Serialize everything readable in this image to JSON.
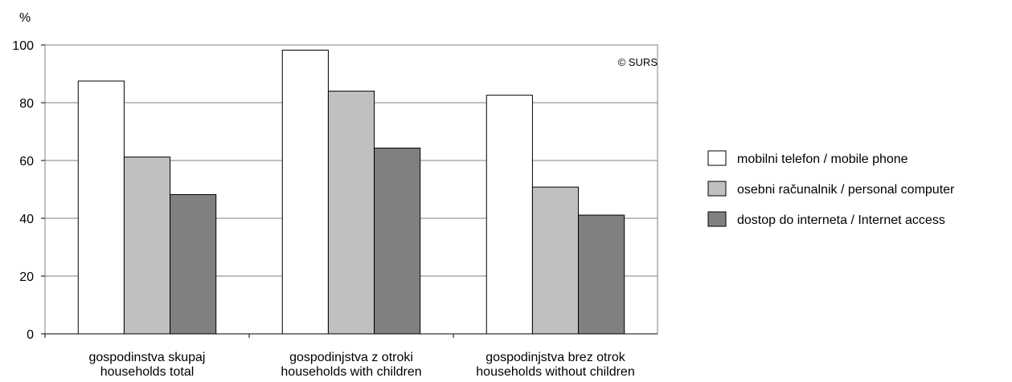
{
  "chart_data": {
    "type": "bar",
    "ylabel": "%",
    "ylim": [
      0,
      100
    ],
    "yticks": [
      0,
      20,
      40,
      60,
      80,
      100
    ],
    "grid": true,
    "legend_position": "right",
    "annotation": "© SURS",
    "categories": [
      [
        "gospodinstva skupaj",
        "households total"
      ],
      [
        "gospodinjstva z otroki",
        "households with children"
      ],
      [
        "gospodinjstva brez otrok",
        "households without children"
      ]
    ],
    "series": [
      {
        "name": "mobilni telefon / mobile phone",
        "color": "#ffffff",
        "values": [
          87.5,
          98.2,
          82.6
        ]
      },
      {
        "name": "osebni računalnik / personal computer",
        "color": "#c0c0c0",
        "values": [
          61.2,
          84.0,
          50.8
        ]
      },
      {
        "name": "dostop do interneta / Internet access",
        "color": "#808080",
        "values": [
          48.2,
          64.3,
          41.1
        ]
      }
    ]
  }
}
